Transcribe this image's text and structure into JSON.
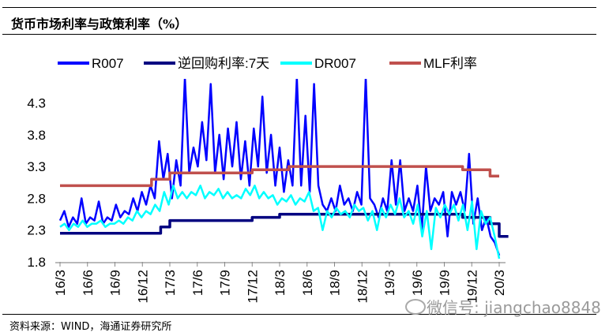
{
  "title": "货币市场利率与政策利率（%）",
  "source": "资料来源：WIND，海通证券研究所",
  "watermark": "微信号: jiangchao8848",
  "chart_data": {
    "type": "line",
    "title": "货币市场利率与政策利率（%）",
    "xlabel": "",
    "ylabel": "",
    "ylim": [
      1.8,
      4.68
    ],
    "yticks": [
      "1.8",
      "2.3",
      "2.8",
      "3.3",
      "3.8",
      "4.3"
    ],
    "xticks": [
      "16/3",
      "16/6",
      "16/9",
      "16/12",
      "17/3",
      "17/6",
      "17/9",
      "17/12",
      "18/3",
      "18/6",
      "18/9",
      "18/12",
      "19/3",
      "19/6",
      "19/9",
      "19/12",
      "20/3"
    ],
    "x_range": [
      "2016-03",
      "2020-03"
    ],
    "grid": false,
    "legend": "top",
    "series": [
      {
        "name": "R007",
        "color": "#0000ff",
        "width": 2.5,
        "values": [
          2.45,
          2.6,
          2.35,
          2.5,
          2.4,
          2.8,
          2.4,
          2.5,
          2.45,
          2.75,
          2.4,
          2.5,
          2.45,
          2.7,
          2.5,
          2.6,
          2.55,
          2.8,
          2.6,
          2.9,
          2.7,
          3.0,
          2.8,
          3.7,
          3.1,
          3.5,
          2.8,
          3.4,
          3.0,
          4.7,
          3.2,
          3.6,
          3.3,
          4.0,
          3.4,
          4.6,
          3.2,
          3.8,
          3.1,
          3.9,
          3.3,
          4.0,
          3.1,
          3.7,
          3.0,
          3.9,
          3.3,
          4.4,
          3.2,
          3.8,
          3.0,
          3.6,
          2.9,
          3.4,
          3.0,
          4.7,
          3.0,
          4.1,
          2.9,
          4.6,
          3.0,
          2.7,
          2.6,
          2.8,
          2.6,
          3.0,
          2.7,
          2.8,
          2.6,
          2.9,
          2.7,
          4.7,
          2.8,
          2.7,
          2.5,
          2.8,
          2.6,
          3.4,
          2.7,
          3.4,
          2.6,
          2.8,
          2.6,
          3.0,
          2.3,
          3.3,
          2.6,
          2.8,
          2.7,
          2.9,
          2.2,
          2.9,
          2.7,
          2.9,
          2.6,
          3.5,
          2.4,
          2.8,
          2.3,
          2.5,
          2.2,
          2.1,
          1.9
        ]
      },
      {
        "name": "逆回购利率:7天",
        "color": "#000080",
        "width": 3.5,
        "steps_to": "2020-04",
        "steps": [
          [
            "2016-03",
            2.25
          ],
          [
            "2017-02",
            2.35
          ],
          [
            "2017-03",
            2.45
          ],
          [
            "2017-12",
            2.5
          ],
          [
            "2018-03",
            2.55
          ],
          [
            "2019-11",
            2.5
          ],
          [
            "2020-02",
            2.4
          ],
          [
            "2020-03",
            2.2
          ]
        ]
      },
      {
        "name": "DR007",
        "color": "#00ffff",
        "width": 2.5,
        "values": [
          2.35,
          2.4,
          2.3,
          2.4,
          2.35,
          2.45,
          2.35,
          2.4,
          2.4,
          2.45,
          2.35,
          2.4,
          2.4,
          2.45,
          2.4,
          2.5,
          2.45,
          2.6,
          2.5,
          2.6,
          2.55,
          2.7,
          2.6,
          2.9,
          2.7,
          3.0,
          2.8,
          2.9,
          2.8,
          2.9,
          2.85,
          3.0,
          2.8,
          2.9,
          2.85,
          2.95,
          2.8,
          2.9,
          2.8,
          2.85,
          2.8,
          2.95,
          2.85,
          3.0,
          2.8,
          2.9,
          2.8,
          2.85,
          2.7,
          2.8,
          2.75,
          2.85,
          2.7,
          2.8,
          2.75,
          2.9,
          2.6,
          2.65,
          2.3,
          2.6,
          2.5,
          2.65,
          2.55,
          2.6,
          2.5,
          2.7,
          2.6,
          2.65,
          2.45,
          2.6,
          2.3,
          2.65,
          2.5,
          2.7,
          2.55,
          2.8,
          2.5,
          2.6,
          2.4,
          2.7,
          2.2,
          2.6,
          2.0,
          2.65,
          2.5,
          2.7,
          2.55,
          2.7,
          2.45,
          2.7,
          2.3,
          2.75,
          2.0,
          2.6,
          2.4,
          2.5,
          2.2,
          1.85
        ]
      },
      {
        "name": "MLF利率",
        "color": "#c0504d",
        "width": 3.5,
        "steps_to": "2020-03",
        "steps": [
          [
            "2016-03",
            3.0
          ],
          [
            "2017-01",
            3.1
          ],
          [
            "2017-03",
            3.2
          ],
          [
            "2017-12",
            3.25
          ],
          [
            "2018-04",
            3.3
          ],
          [
            "2019-11",
            3.25
          ],
          [
            "2020-02",
            3.15
          ]
        ]
      }
    ]
  }
}
